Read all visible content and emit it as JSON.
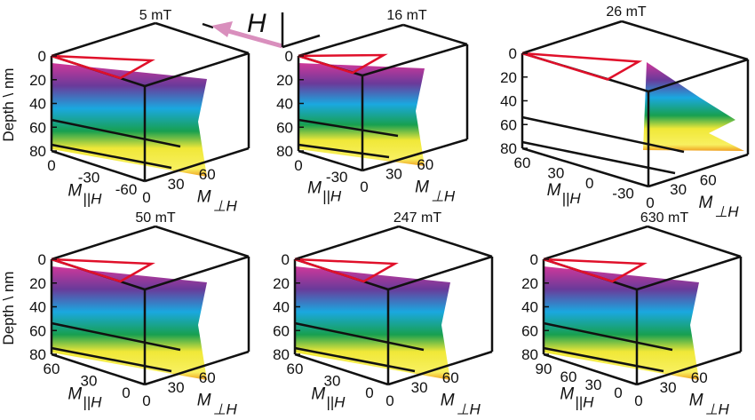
{
  "chart_data": [
    {
      "type": "surface",
      "title": "5 mT",
      "depth_ticks": [
        "0",
        "20",
        "40",
        "60",
        "80"
      ],
      "par_ticks": [
        "0",
        "-30",
        "-60"
      ],
      "perp_ticks": [
        "0",
        "30",
        "60"
      ],
      "ylabel": "Depth \\ nm",
      "xlabel": "M",
      "xlabel_sub": "||H",
      "zlabel": "M",
      "zlabel_sub": "⊥H"
    },
    {
      "type": "surface",
      "title": "16 mT",
      "depth_ticks": [
        "0",
        "20",
        "40",
        "60",
        "80"
      ],
      "par_ticks": [
        "0",
        "-30"
      ],
      "perp_ticks": [
        "0",
        "30",
        "60"
      ],
      "ylabel": "",
      "xlabel": "M",
      "xlabel_sub": "||H",
      "zlabel": "M",
      "zlabel_sub": "⊥H"
    },
    {
      "type": "surface",
      "title": "26 mT",
      "depth_ticks": [
        "0",
        "20",
        "40",
        "60",
        "80"
      ],
      "par_ticks": [
        "60",
        "30",
        "0",
        "-30"
      ],
      "perp_ticks": [
        "0",
        "30",
        "60"
      ],
      "ylabel": "",
      "xlabel": "M",
      "xlabel_sub": "||H",
      "zlabel": "M",
      "zlabel_sub": "⊥H"
    },
    {
      "type": "surface",
      "title": "50 mT",
      "depth_ticks": [
        "0",
        "20",
        "40",
        "60",
        "80"
      ],
      "par_ticks": [
        "60",
        "30",
        "0"
      ],
      "perp_ticks": [
        "0",
        "30",
        "60"
      ],
      "ylabel": "Depth \\ nm",
      "xlabel": "M",
      "xlabel_sub": "||H",
      "zlabel": "M",
      "zlabel_sub": "⊥H"
    },
    {
      "type": "surface",
      "title": "247 mT",
      "depth_ticks": [
        "0",
        "20",
        "40",
        "60",
        "80"
      ],
      "par_ticks": [
        "60",
        "30",
        "0"
      ],
      "perp_ticks": [
        "0",
        "30",
        "60"
      ],
      "ylabel": "",
      "xlabel": "M",
      "xlabel_sub": "||H",
      "zlabel": "M",
      "zlabel_sub": "⊥H"
    },
    {
      "type": "surface",
      "title": "630 mT",
      "depth_ticks": [
        "0",
        "20",
        "40",
        "60",
        "80"
      ],
      "par_ticks": [
        "90",
        "60",
        "30",
        "0"
      ],
      "perp_ticks": [
        "0",
        "30",
        "60"
      ],
      "ylabel": "",
      "xlabel": "M",
      "xlabel_sub": "||H",
      "zlabel": "M",
      "zlabel_sub": "⊥H"
    }
  ],
  "field_indicator": {
    "label": "H",
    "arrow_color": "#d98fbd"
  },
  "colors": {
    "profile_line": "#e0102a",
    "depth_gradient": [
      "#d0389a",
      "#6a3a9a",
      "#1aa8e0",
      "#18a050",
      "#f0e838",
      "#f0a020"
    ]
  }
}
